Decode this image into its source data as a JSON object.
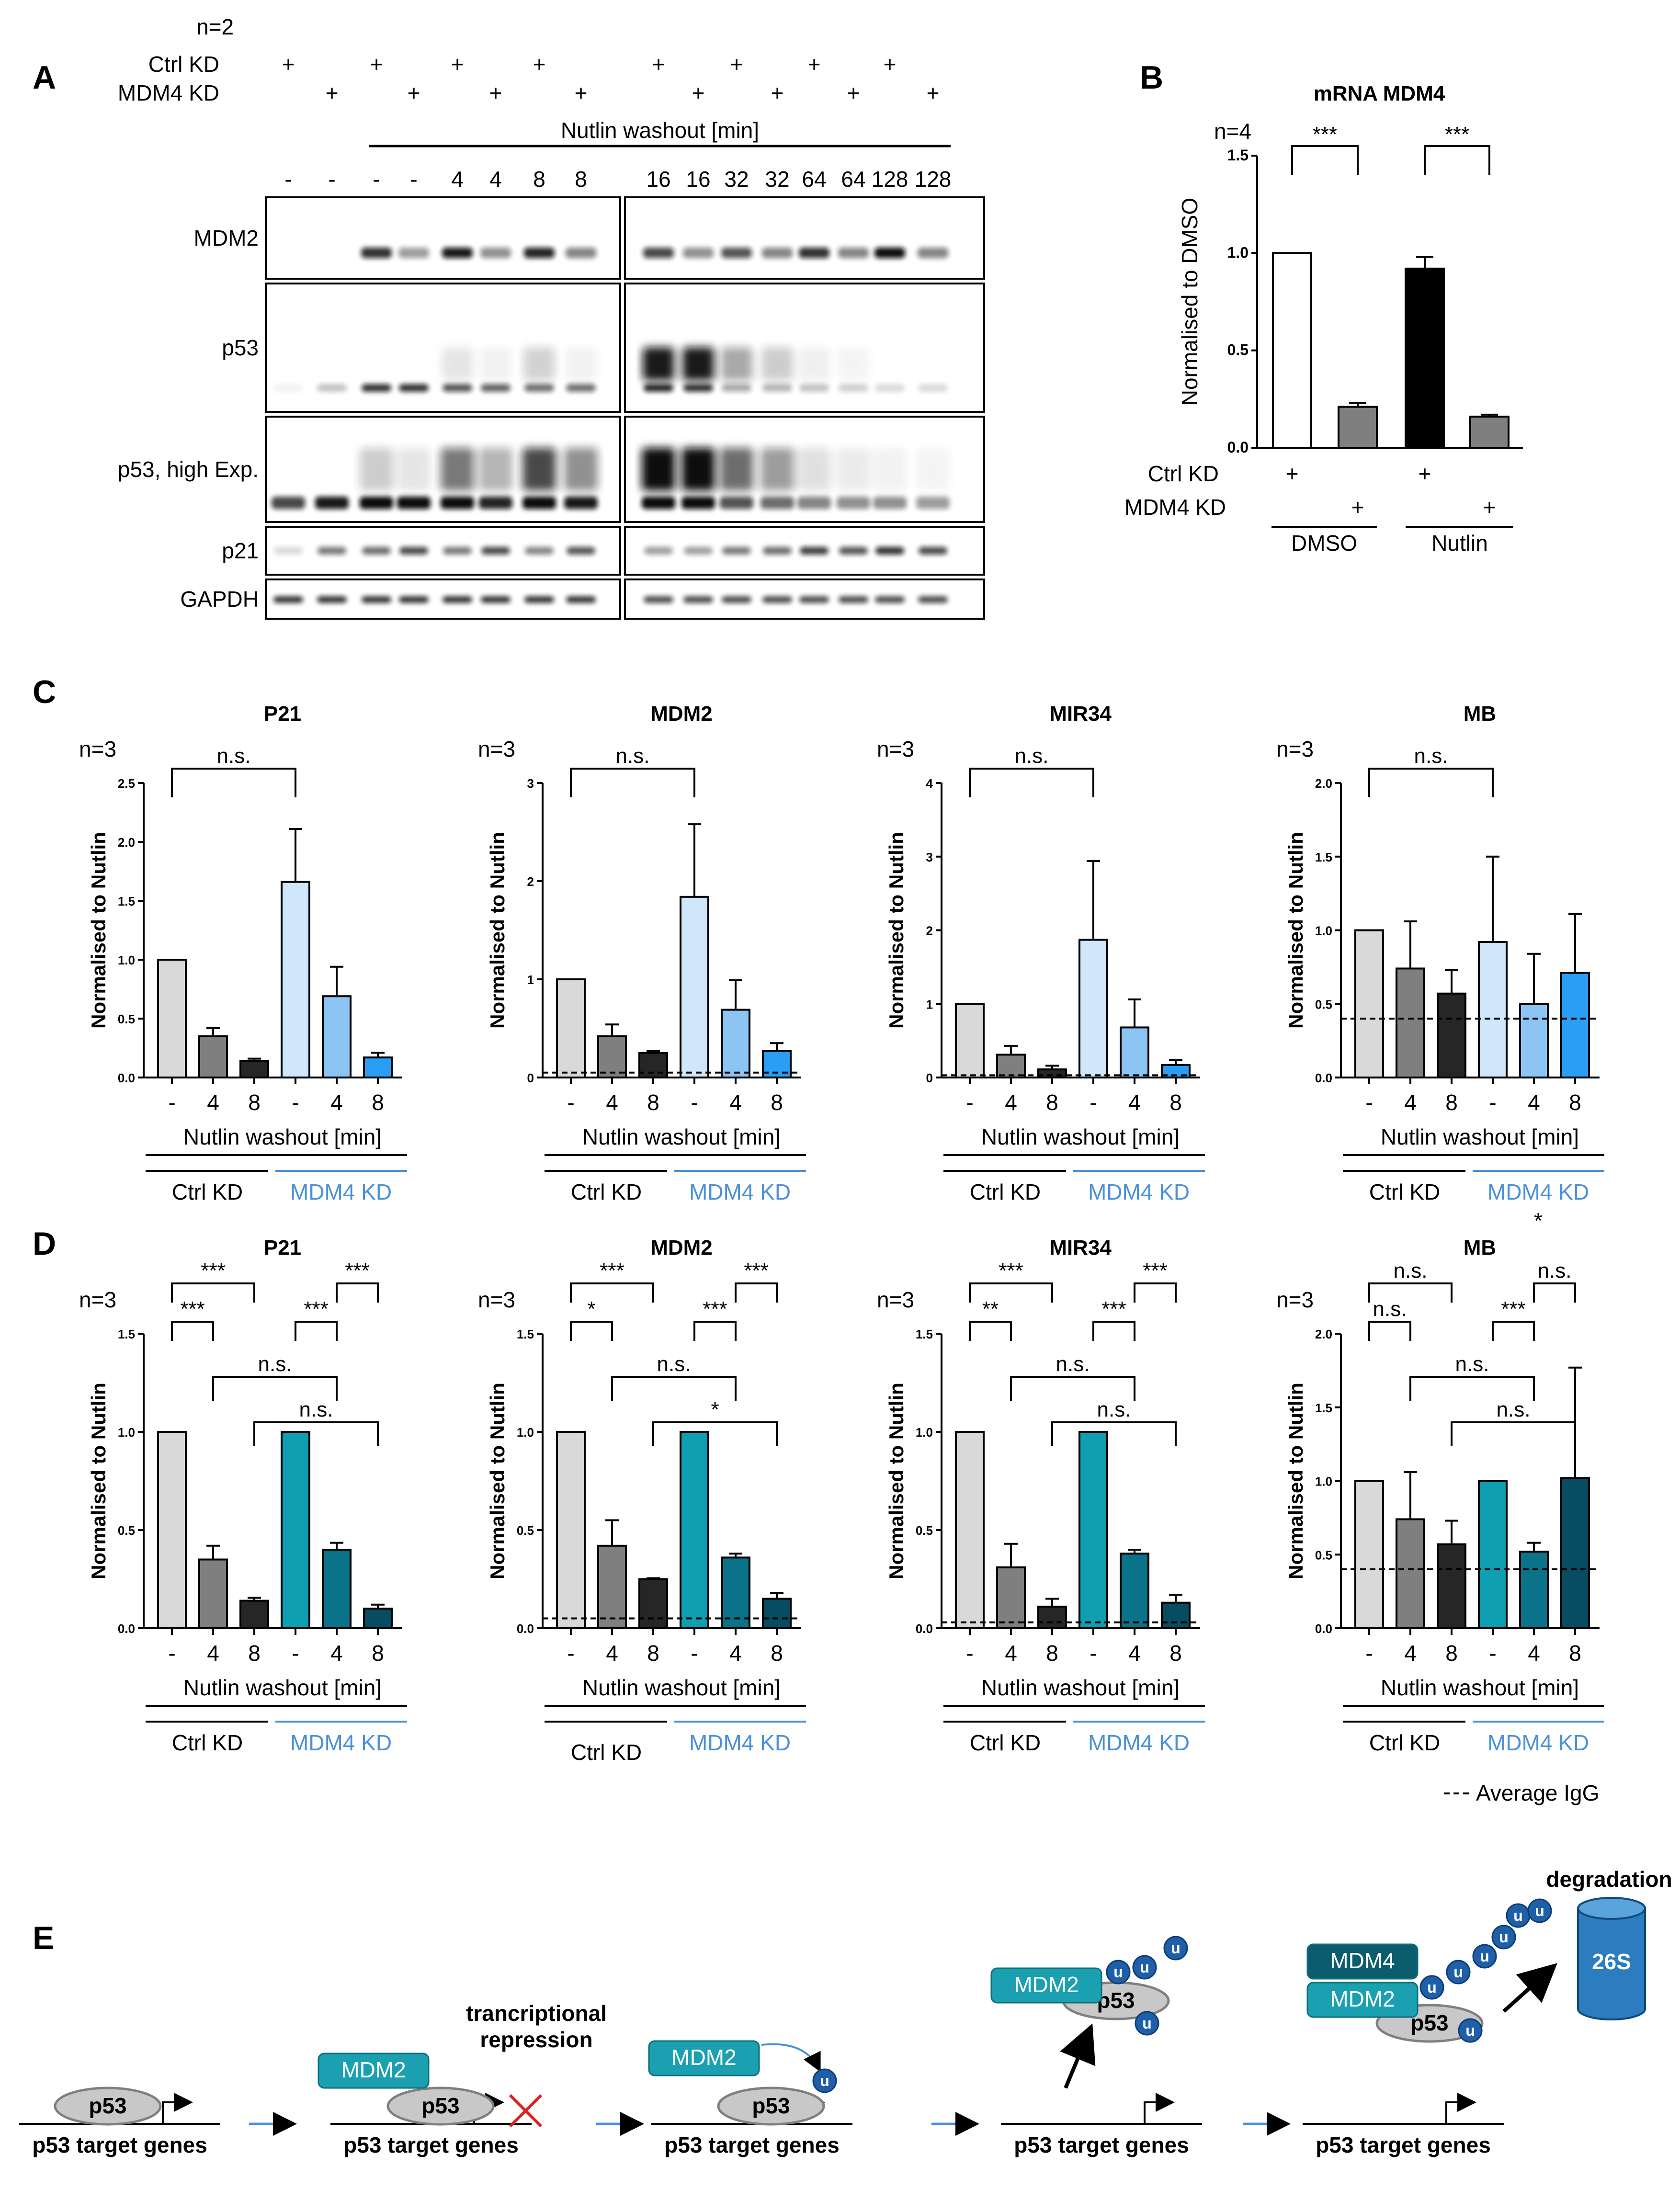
{
  "panels": {
    "A": "A",
    "B": "B",
    "C": "C",
    "D": "D",
    "E": "E"
  },
  "panel_a": {
    "n": "n=2",
    "ctrl_kd": "Ctrl KD",
    "mdm4_kd": "MDM4 KD",
    "plus": "+",
    "washout_label": "Nutlin washout [min]",
    "left_times": [
      "-",
      "-",
      "-",
      "-",
      "4",
      "4",
      "8",
      "8"
    ],
    "right_times": [
      "16",
      "16",
      "32",
      "32",
      "64",
      "64",
      "128",
      "128"
    ],
    "rows": [
      "MDM2",
      "p53",
      "p53, high Exp.",
      "p21",
      "GAPDH"
    ]
  },
  "panel_c": {
    "n": "n=3",
    "star": "*"
  },
  "panel_d": {
    "n": "n=3"
  },
  "common": {
    "ylabel": "Normalised to Nutlin",
    "xticks": [
      "-",
      "4",
      "8",
      "-",
      "4",
      "8"
    ],
    "washout": "Nutlin washout [min]",
    "ctrl": "Ctrl KD",
    "mdm4": "MDM4 KD",
    "legend": "Average IgG",
    "ns": "n.s.",
    "s1": "*",
    "s2": "**",
    "s3": "***"
  },
  "panel_e": {
    "p53": "p53",
    "mdm2": "MDM2",
    "mdm4": "MDM4",
    "u": "u",
    "target": "p53 target genes",
    "tr1": "trancriptional",
    "tr2": "repression",
    "degradation": "degradation",
    "proteasome": "26S"
  },
  "chart_data": [
    {
      "id": "B",
      "type": "bar",
      "title": "mRNA MDM4",
      "n": "n=4",
      "ylabel": "Normalised to DMSO",
      "ylim": [
        0,
        1.5
      ],
      "yticks": [
        "0.0",
        "0.5",
        "1.0",
        "1.5"
      ],
      "categories": [
        "Ctrl KD / DMSO",
        "MDM4 KD / DMSO",
        "Ctrl KD / Nutlin",
        "MDM4 KD / Nutlin"
      ],
      "values": [
        1.0,
        0.21,
        0.92,
        0.16
      ],
      "errors": [
        0,
        0.02,
        0.06,
        0.01
      ],
      "colors": [
        "#ffffff",
        "#7f7f7f",
        "#000000",
        "#7f7f7f"
      ],
      "row_labels": [
        "Ctrl KD",
        "MDM4 KD"
      ],
      "plus": "+",
      "groups": [
        "DMSO",
        "Nutlin"
      ],
      "significance": [
        "***",
        "***"
      ]
    },
    {
      "id": "C-P21",
      "type": "bar",
      "title": "P21",
      "ylim": [
        0,
        2.5
      ],
      "yticks": [
        "0.0",
        "0.5",
        "1.0",
        "1.5",
        "2.0",
        "2.5"
      ],
      "values": [
        1.0,
        0.35,
        0.14,
        1.66,
        0.69,
        0.17
      ],
      "errors": [
        0,
        0.07,
        0.02,
        0.45,
        0.25,
        0.04
      ],
      "colors": [
        "#d9d9d9",
        "#7f7f7f",
        "#262626",
        "#cfe6fb",
        "#8cc5f4",
        "#2a9df4"
      ],
      "significance": [
        "n.s."
      ],
      "igg": null
    },
    {
      "id": "C-MDM2",
      "type": "bar",
      "title": "MDM2",
      "ylim": [
        0,
        3
      ],
      "yticks": [
        "0",
        "1",
        "2",
        "3"
      ],
      "values": [
        1.0,
        0.42,
        0.25,
        1.84,
        0.69,
        0.27
      ],
      "errors": [
        0,
        0.12,
        0.02,
        0.74,
        0.3,
        0.08
      ],
      "colors": [
        "#d9d9d9",
        "#7f7f7f",
        "#262626",
        "#cfe6fb",
        "#8cc5f4",
        "#2a9df4"
      ],
      "significance": [
        "n.s."
      ],
      "igg": 0.05
    },
    {
      "id": "C-MIR34",
      "type": "bar",
      "title": "MIR34",
      "ylim": [
        0,
        4
      ],
      "yticks": [
        "0",
        "1",
        "2",
        "3",
        "4"
      ],
      "values": [
        1.0,
        0.31,
        0.11,
        1.87,
        0.68,
        0.17
      ],
      "errors": [
        0,
        0.12,
        0.05,
        1.07,
        0.38,
        0.07
      ],
      "colors": [
        "#d9d9d9",
        "#7f7f7f",
        "#262626",
        "#cfe6fb",
        "#8cc5f4",
        "#2a9df4"
      ],
      "significance": [
        "n.s."
      ],
      "igg": 0.03
    },
    {
      "id": "C-MB",
      "type": "bar",
      "title": "MB",
      "ylim": [
        0,
        2.0
      ],
      "yticks": [
        "0.0",
        "0.5",
        "1.0",
        "1.5",
        "2.0"
      ],
      "values": [
        1.0,
        0.74,
        0.57,
        0.92,
        0.5,
        0.71
      ],
      "errors": [
        0,
        0.32,
        0.16,
        0.58,
        0.34,
        0.4
      ],
      "colors": [
        "#d9d9d9",
        "#7f7f7f",
        "#262626",
        "#cfe6fb",
        "#8cc5f4",
        "#2a9df4"
      ],
      "significance": [
        "n.s."
      ],
      "igg": 0.4
    },
    {
      "id": "D-P21",
      "type": "bar",
      "title": "P21",
      "ylim": [
        0,
        1.5
      ],
      "yticks": [
        "0.0",
        "0.5",
        "1.0",
        "1.5"
      ],
      "values": [
        1.0,
        0.35,
        0.14,
        1.0,
        0.4,
        0.1
      ],
      "errors": [
        0,
        0.07,
        0.015,
        0,
        0.035,
        0.02
      ],
      "colors": [
        "#d9d9d9",
        "#7f7f7f",
        "#262626",
        "#0f9fb3",
        "#0a7289",
        "#074c60"
      ],
      "significance": [
        "***",
        "***",
        "n.s.",
        "n.s.",
        "***",
        "***"
      ],
      "igg": null
    },
    {
      "id": "D-MDM2",
      "type": "bar",
      "title": "MDM2",
      "ylim": [
        0,
        1.5
      ],
      "yticks": [
        "0.0",
        "0.5",
        "1.0",
        "1.5"
      ],
      "values": [
        1.0,
        0.42,
        0.25,
        1.0,
        0.36,
        0.15
      ],
      "errors": [
        0,
        0.13,
        0.005,
        0,
        0.02,
        0.03
      ],
      "colors": [
        "#d9d9d9",
        "#7f7f7f",
        "#262626",
        "#0f9fb3",
        "#0a7289",
        "#074c60"
      ],
      "significance": [
        "***",
        "*",
        "n.s.",
        "*",
        "***",
        "***"
      ],
      "igg": 0.05
    },
    {
      "id": "D-MIR34",
      "type": "bar",
      "title": "MIR34",
      "ylim": [
        0,
        1.5
      ],
      "yticks": [
        "0.0",
        "0.5",
        "1.0",
        "1.5"
      ],
      "values": [
        1.0,
        0.31,
        0.11,
        1.0,
        0.38,
        0.13
      ],
      "errors": [
        0,
        0.12,
        0.04,
        0,
        0.02,
        0.04
      ],
      "colors": [
        "#d9d9d9",
        "#7f7f7f",
        "#262626",
        "#0f9fb3",
        "#0a7289",
        "#074c60"
      ],
      "significance": [
        "***",
        "**",
        "n.s.",
        "n.s.",
        "***",
        "***"
      ],
      "igg": 0.03
    },
    {
      "id": "D-MB",
      "type": "bar",
      "title": "MB",
      "ylim": [
        0,
        2.0
      ],
      "yticks": [
        "0.0",
        "0.5",
        "1.0",
        "1.5",
        "2.0"
      ],
      "values": [
        1.0,
        0.74,
        0.57,
        1.0,
        0.52,
        1.02
      ],
      "errors": [
        0,
        0.32,
        0.16,
        0,
        0.06,
        0.75
      ],
      "colors": [
        "#d9d9d9",
        "#7f7f7f",
        "#262626",
        "#0f9fb3",
        "#0a7289",
        "#074c60"
      ],
      "significance": [
        "n.s.",
        "n.s.",
        "n.s.",
        "n.s.",
        "***",
        "n.s."
      ],
      "igg": 0.4
    }
  ]
}
